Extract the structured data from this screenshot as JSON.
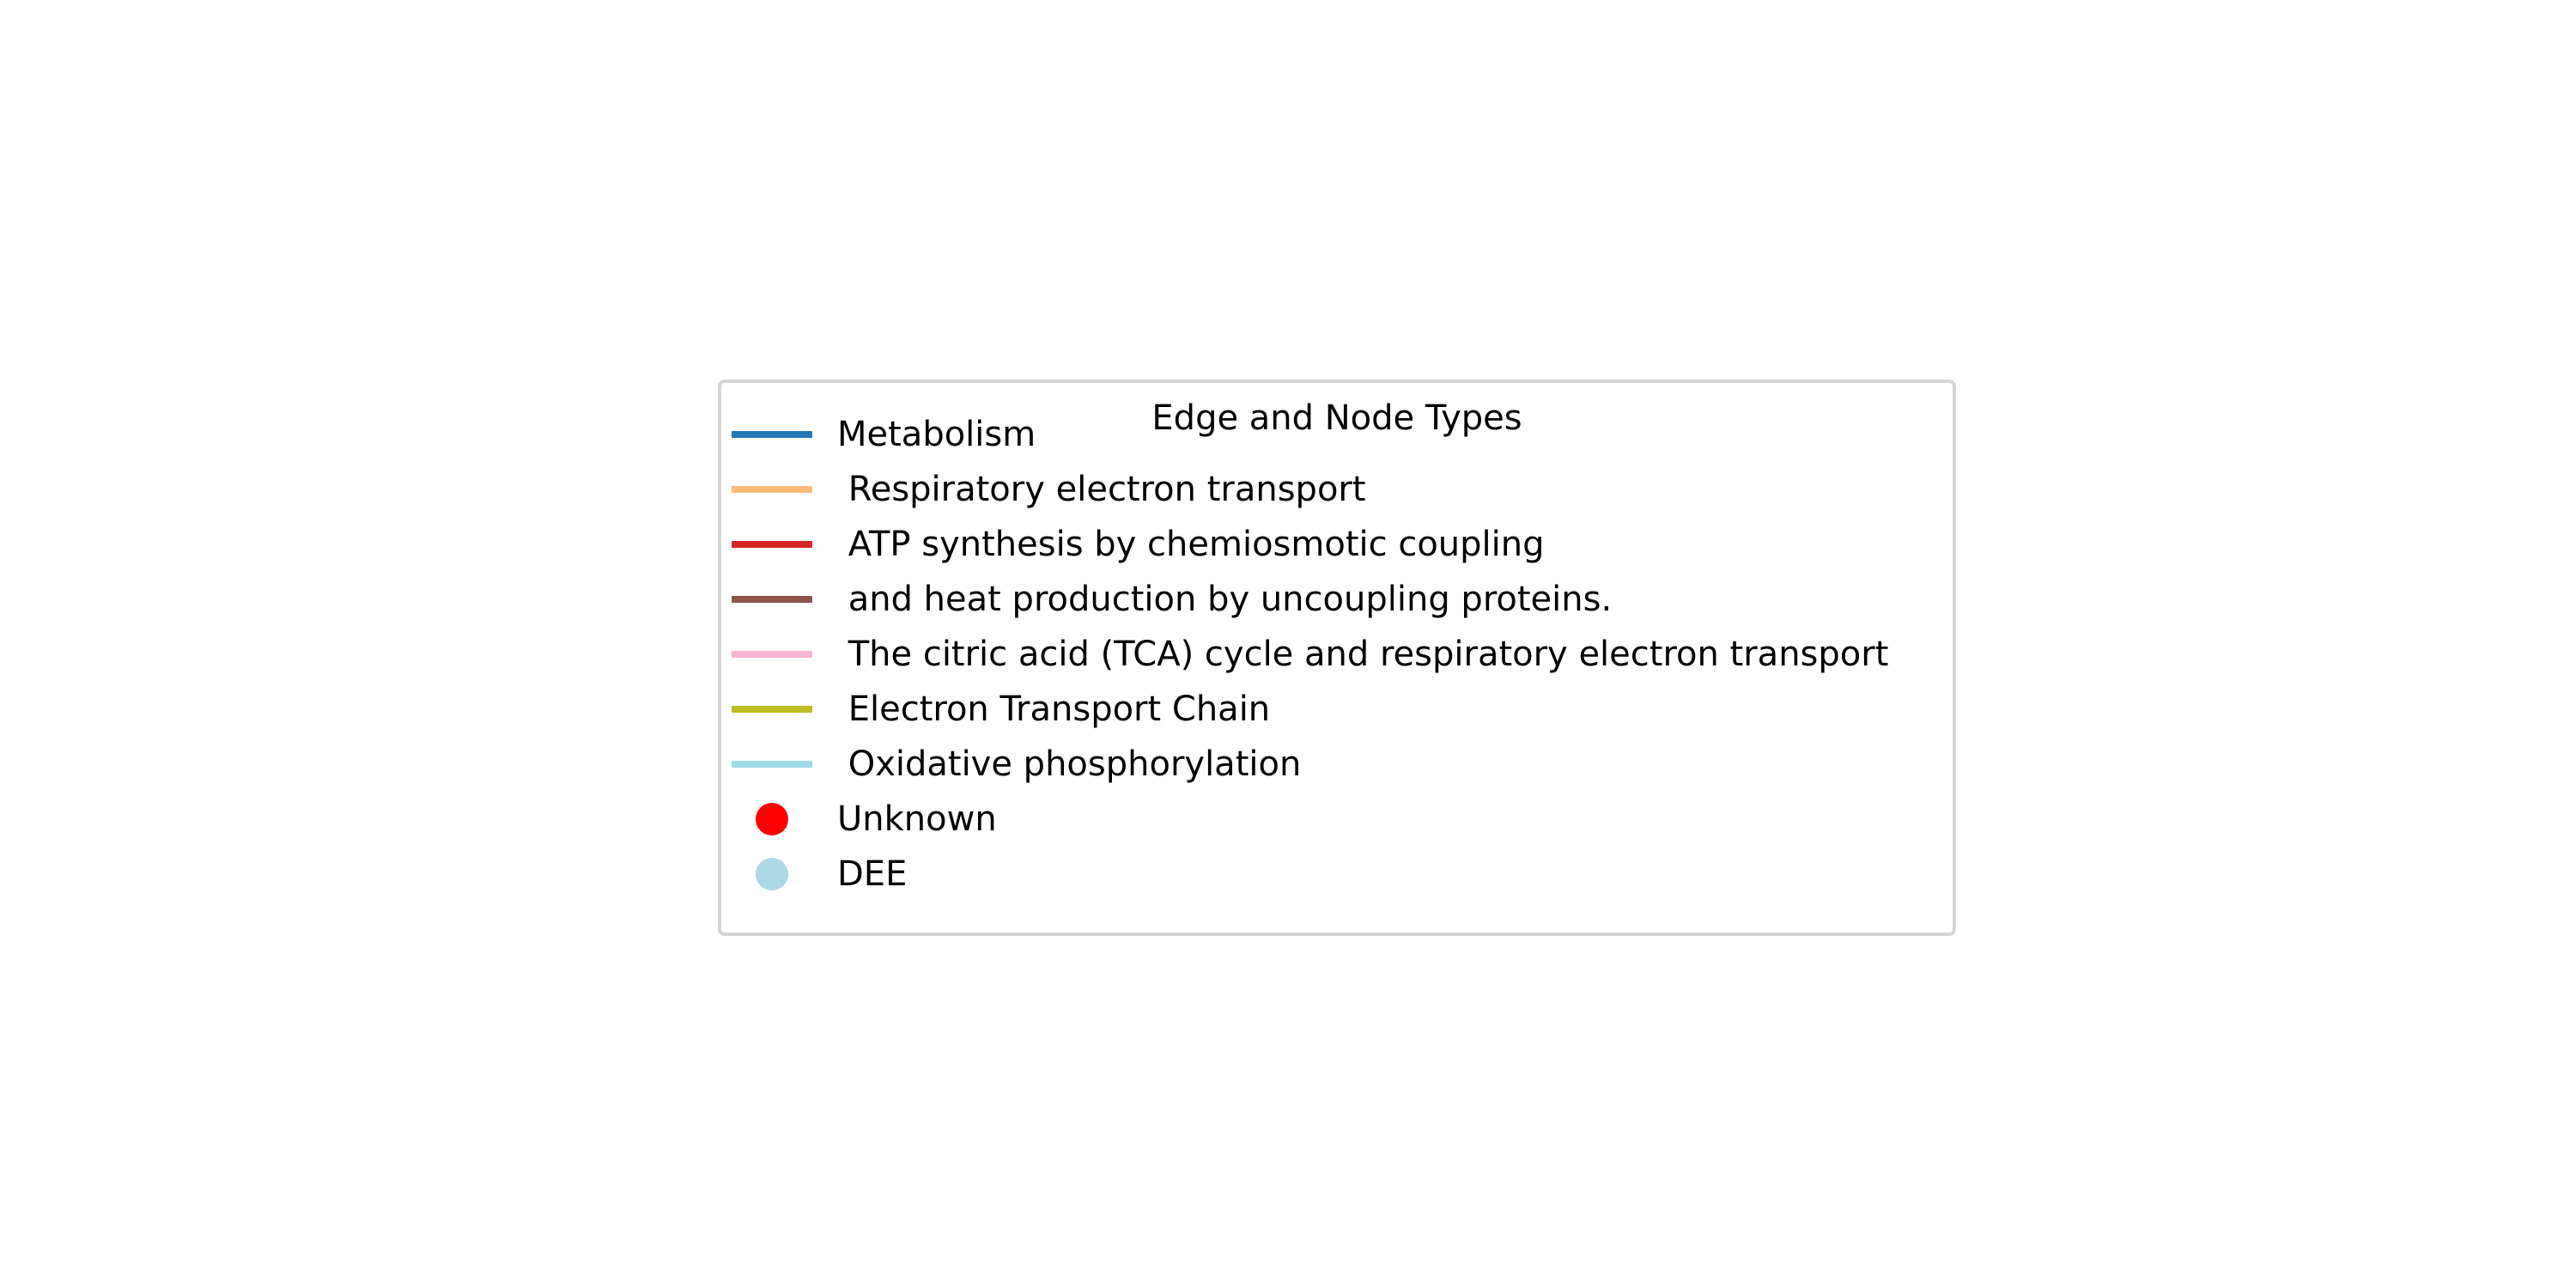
{
  "legend": {
    "title": "Edge and Node Types",
    "entries": [
      {
        "kind": "line",
        "label": "Metabolism",
        "color": "#1f77b4"
      },
      {
        "kind": "line",
        "label": " Respiratory electron transport",
        "color": "#ffbb78"
      },
      {
        "kind": "line",
        "label": " ATP synthesis by chemiosmotic coupling",
        "color": "#d62728"
      },
      {
        "kind": "line",
        "label": " and heat production by uncoupling proteins.",
        "color": "#8c564b"
      },
      {
        "kind": "line",
        "label": " The citric acid (TCA) cycle and respiratory electron transport",
        "color": "#f7b6d2"
      },
      {
        "kind": "line",
        "label": " Electron Transport Chain",
        "color": "#bcbd22"
      },
      {
        "kind": "line",
        "label": " Oxidative phosphorylation",
        "color": "#9edae5"
      },
      {
        "kind": "dot",
        "label": "Unknown",
        "color": "#ff0000"
      },
      {
        "kind": "dot",
        "label": "DEE",
        "color": "#add8e6"
      }
    ]
  }
}
